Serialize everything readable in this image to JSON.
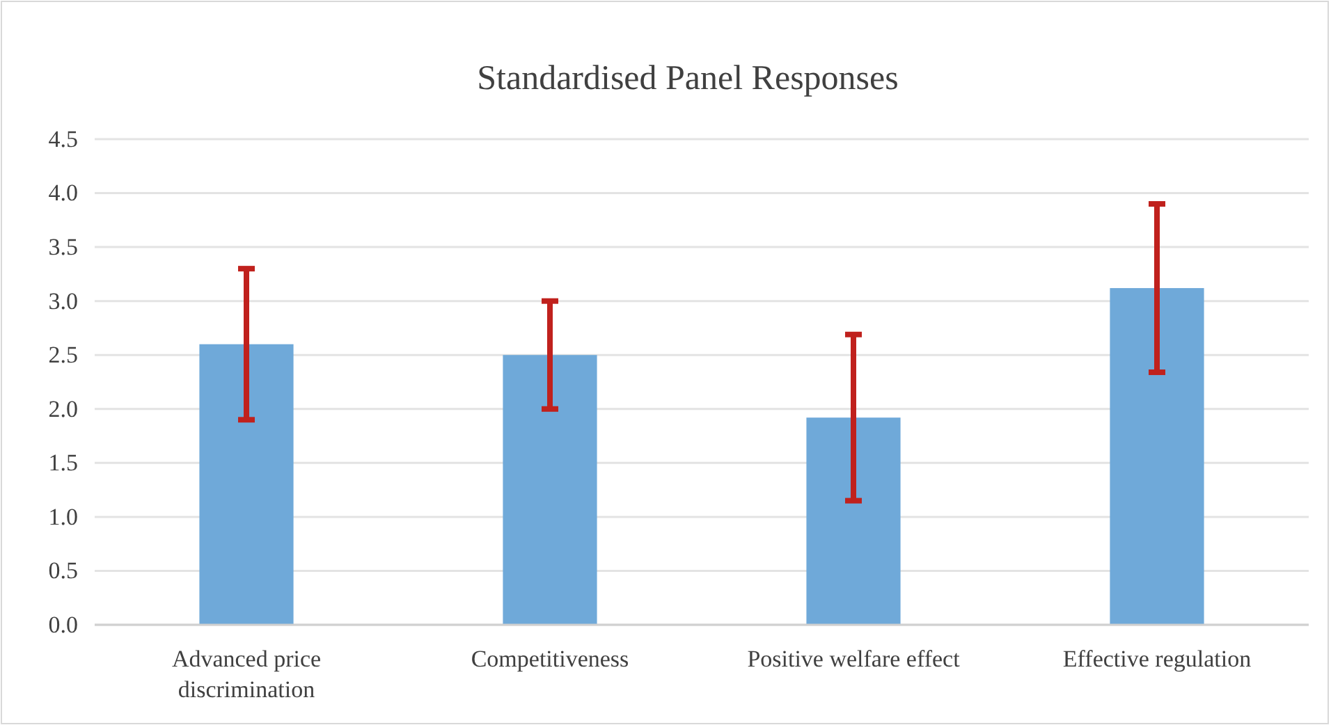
{
  "chart_data": {
    "type": "bar",
    "title": "Standardised Panel Responses",
    "categories": [
      "Advanced price discrimination",
      "Competitiveness",
      "Positive welfare effect",
      "Effective regulation"
    ],
    "values": [
      2.6,
      2.5,
      1.92,
      3.12
    ],
    "errors": [
      0.7,
      0.5,
      0.77,
      0.78
    ],
    "color": "#6fa9d9",
    "ylim": [
      0,
      4.5
    ],
    "yticks": [
      {
        "value": 0,
        "label": "0.0"
      },
      {
        "value": 0.5,
        "label": "0.5"
      },
      {
        "value": 1,
        "label": "1.0"
      },
      {
        "value": 1.5,
        "label": "1.5"
      },
      {
        "value": 2,
        "label": "2.0"
      },
      {
        "value": 2.5,
        "label": "2.5"
      },
      {
        "value": 3,
        "label": "3.0"
      },
      {
        "value": 3.5,
        "label": "3.5"
      },
      {
        "value": 4,
        "label": "4.0"
      },
      {
        "value": 4.5,
        "label": "4.5"
      }
    ],
    "grid": "y"
  }
}
